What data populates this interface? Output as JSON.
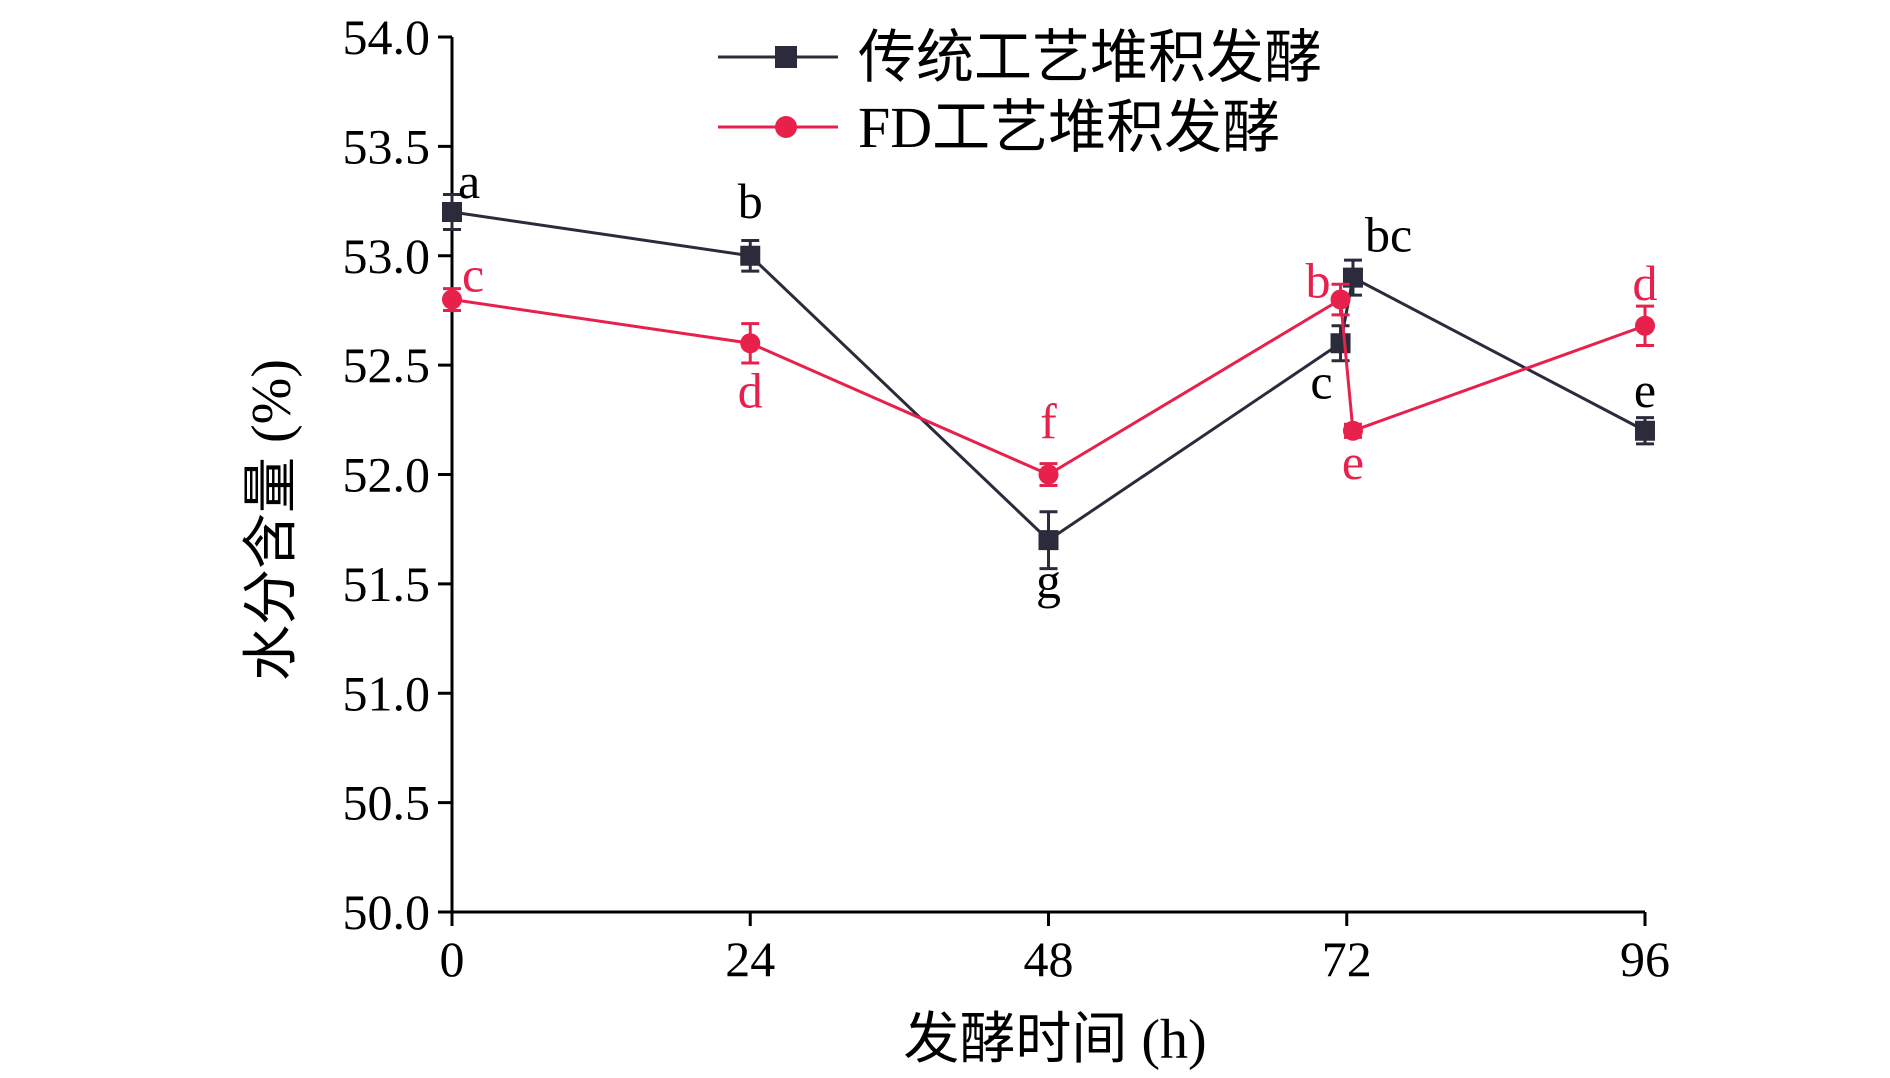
{
  "chart_data": {
    "type": "line",
    "title": "",
    "xlabel": "发酵时间 (h)",
    "ylabel": "水分含量 (%)",
    "xlim": [
      0,
      96
    ],
    "ylim": [
      50.0,
      54.0
    ],
    "x_ticks": [
      0,
      24,
      48,
      72,
      96
    ],
    "x_tick_labels": [
      "0",
      "24",
      "48",
      "72",
      "96"
    ],
    "y_ticks": [
      50.0,
      50.5,
      51.0,
      51.5,
      52.0,
      52.5,
      53.0,
      53.5,
      54.0
    ],
    "y_tick_labels": [
      "50.0",
      "50.5",
      "51.0",
      "51.5",
      "52.0",
      "52.5",
      "53.0",
      "53.5",
      "54.0"
    ],
    "grid": false,
    "legend_position": "top-center",
    "series": [
      {
        "name": "传统工艺堆积发酵",
        "color": "#2b2b3b",
        "marker": "square",
        "x": [
          0,
          24,
          48,
          71.5,
          72.5,
          96
        ],
        "y": [
          53.2,
          53.0,
          51.7,
          52.6,
          52.9,
          52.2
        ],
        "error": [
          0.08,
          0.07,
          0.13,
          0.08,
          0.08,
          0.06
        ],
        "labels": [
          "a",
          "b",
          "g",
          "c",
          "bc",
          "e"
        ]
      },
      {
        "name": "FD工艺堆积发酵",
        "color": "#e8204c",
        "marker": "circle",
        "x": [
          0,
          24,
          48,
          71.5,
          72.5,
          96
        ],
        "y": [
          52.8,
          52.6,
          52.0,
          52.8,
          52.2,
          52.68
        ],
        "error": [
          0.05,
          0.09,
          0.05,
          0.07,
          0.03,
          0.09
        ],
        "labels": [
          "c",
          "d",
          "f",
          "b",
          "e",
          "d"
        ]
      }
    ]
  }
}
